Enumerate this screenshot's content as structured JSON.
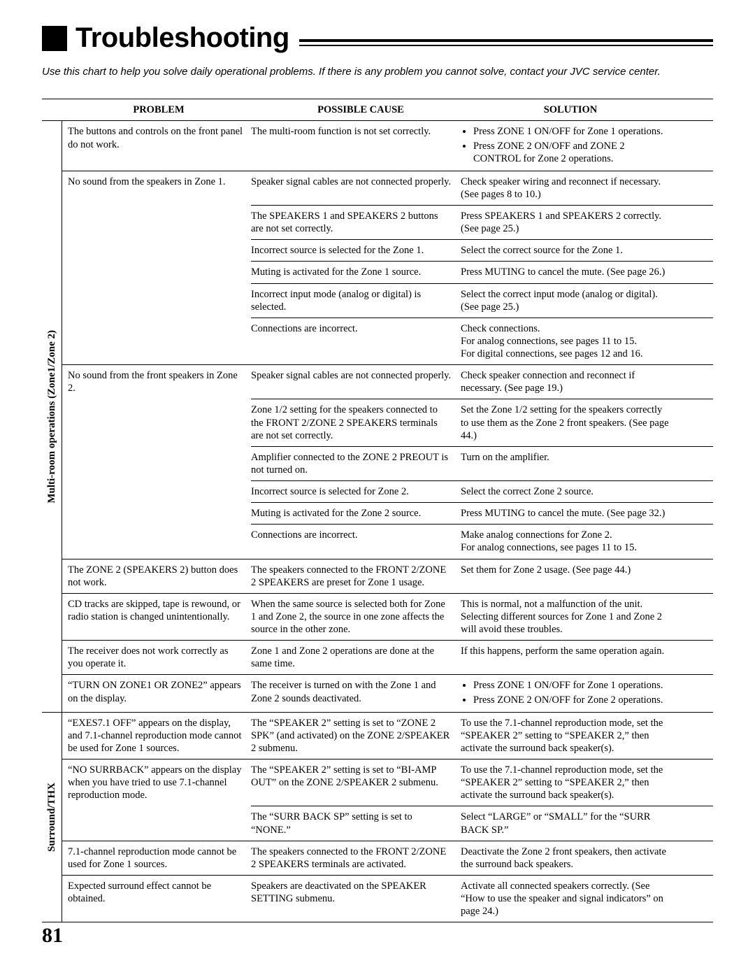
{
  "pageTitle": "Troubleshooting",
  "intro": "Use this chart to help you solve daily operational problems. If there is any problem you cannot solve, contact your JVC service center.",
  "headers": {
    "problem": "PROBLEM",
    "cause": "POSSIBLE CAUSE",
    "solution": "SOLUTION"
  },
  "pageNumber": "81",
  "sections": [
    {
      "label": "Multi-room operations (Zone1/Zone 2)",
      "rows": [
        {
          "problem": "The buttons and controls on the front panel do not work.",
          "causes": [
            {
              "cause": "The multi-room function is not set correctly.",
              "solution": {
                "type": "list",
                "items": [
                  "Press ZONE 1 ON/OFF for Zone 1 operations.",
                  "Press ZONE 2 ON/OFF and ZONE 2 CONTROL for Zone 2 operations."
                ]
              }
            }
          ]
        },
        {
          "problem": "No sound from the speakers in Zone 1.",
          "causes": [
            {
              "cause": "Speaker signal cables are not connected properly.",
              "solution": {
                "type": "text",
                "text": "Check speaker wiring and reconnect if necessary. (See pages 8 to 10.)"
              }
            },
            {
              "cause": "The SPEAKERS 1 and SPEAKERS 2 buttons are not set correctly.",
              "solution": {
                "type": "text",
                "text": "Press SPEAKERS 1 and SPEAKERS 2 correctly. (See page 25.)"
              }
            },
            {
              "cause": "Incorrect source is selected for the Zone 1.",
              "solution": {
                "type": "text",
                "text": "Select the correct source for the Zone 1."
              }
            },
            {
              "cause": "Muting is activated for the Zone 1 source.",
              "solution": {
                "type": "text",
                "text": "Press MUTING to cancel the mute. (See page 26.)"
              }
            },
            {
              "cause": "Incorrect input mode (analog or digital) is selected.",
              "solution": {
                "type": "text",
                "text": "Select the correct input mode (analog or digital). (See page 25.)"
              }
            },
            {
              "cause": "Connections are incorrect.",
              "solution": {
                "type": "text",
                "text": "Check connections.\nFor analog connections, see pages 11 to 15.\nFor digital connections, see pages 12 and 16."
              }
            }
          ]
        },
        {
          "problem": "No sound from the front speakers in Zone 2.",
          "causes": [
            {
              "cause": "Speaker signal cables are not connected properly.",
              "solution": {
                "type": "text",
                "text": "Check speaker connection and reconnect if necessary. (See page 19.)"
              }
            },
            {
              "cause": "Zone 1/2 setting for the speakers connected to the FRONT 2/ZONE 2 SPEAKERS terminals are not set correctly.",
              "solution": {
                "type": "text",
                "text": "Set the Zone 1/2 setting for the speakers correctly to use them as the Zone 2 front speakers. (See page 44.)"
              }
            },
            {
              "cause": "Amplifier connected to the ZONE 2 PREOUT is not turned on.",
              "solution": {
                "type": "text",
                "text": "Turn on the amplifier."
              }
            },
            {
              "cause": "Incorrect source is selected for Zone 2.",
              "solution": {
                "type": "text",
                "text": "Select the correct Zone 2 source."
              }
            },
            {
              "cause": "Muting is activated for the Zone 2 source.",
              "solution": {
                "type": "text",
                "text": "Press MUTING to cancel the mute. (See page 32.)"
              }
            },
            {
              "cause": "Connections are incorrect.",
              "solution": {
                "type": "text",
                "text": "Make analog connections for Zone 2.\nFor analog connections, see pages 11 to 15."
              }
            }
          ]
        },
        {
          "problem": "The ZONE 2 (SPEAKERS 2) button does not work.",
          "causes": [
            {
              "cause": "The speakers connected to the FRONT 2/ZONE 2 SPEAKERS are preset for Zone 1 usage.",
              "solution": {
                "type": "text",
                "text": "Set them for Zone 2 usage. (See page 44.)"
              }
            }
          ]
        },
        {
          "problem": "CD tracks are skipped, tape is rewound, or radio station is changed unintentionally.",
          "causes": [
            {
              "cause": "When the same source is selected both for Zone 1 and Zone 2, the source in one zone affects the source in the other zone.",
              "solution": {
                "type": "text",
                "text": "This is normal, not a malfunction of the unit. Selecting different sources for Zone 1 and Zone 2 will avoid these troubles."
              }
            }
          ]
        },
        {
          "problem": "The receiver does not work correctly as you operate it.",
          "causes": [
            {
              "cause": "Zone 1 and Zone 2 operations are done at the same time.",
              "solution": {
                "type": "text",
                "text": "If this happens, perform the same operation again."
              }
            }
          ]
        },
        {
          "problem": "“TURN ON ZONE1 OR ZONE2” appears on the display.",
          "causes": [
            {
              "cause": "The receiver is turned on with the Zone 1 and Zone 2 sounds deactivated.",
              "solution": {
                "type": "list",
                "items": [
                  "Press ZONE 1 ON/OFF for Zone 1 operations.",
                  "Press ZONE 2 ON/OFF for Zone 2 operations."
                ]
              }
            }
          ]
        }
      ]
    },
    {
      "label": "Surround/THX",
      "rows": [
        {
          "problem": "“EXES7.1 OFF” appears on the display, and 7.1-channel reproduction mode cannot be used for Zone 1 sources.",
          "causes": [
            {
              "cause": "The “SPEAKER 2” setting is set to “ZONE 2 SPK” (and activated) on the ZONE 2/SPEAKER 2 submenu.",
              "solution": {
                "type": "text",
                "text": "To use the 7.1-channel reproduction mode, set the “SPEAKER 2” setting to “SPEAKER 2,” then activate the surround back speaker(s)."
              }
            }
          ]
        },
        {
          "problem": "“NO SURRBACK” appears on the display when you have tried to use 7.1-channel reproduction mode.",
          "causes": [
            {
              "cause": "The “SPEAKER 2” setting is set to “BI-AMP OUT” on the ZONE 2/SPEAKER 2 submenu.",
              "solution": {
                "type": "text",
                "text": "To use the 7.1-channel reproduction mode, set the “SPEAKER 2” setting to “SPEAKER 2,” then activate the surround back speaker(s)."
              }
            },
            {
              "cause": "The “SURR BACK SP” setting is set to “NONE.”",
              "solution": {
                "type": "text",
                "text": "Select “LARGE” or “SMALL” for the “SURR BACK SP.”"
              }
            }
          ]
        },
        {
          "problem": "7.1-channel reproduction mode cannot be used for Zone 1 sources.",
          "causes": [
            {
              "cause": "The speakers connected to the FRONT 2/ZONE 2 SPEAKERS terminals are activated.",
              "solution": {
                "type": "text",
                "text": "Deactivate the Zone 2 front speakers, then activate the surround back speakers."
              }
            }
          ]
        },
        {
          "problem": "Expected surround effect cannot be obtained.",
          "causes": [
            {
              "cause": "Speakers are deactivated on the SPEAKER SETTING submenu.",
              "solution": {
                "type": "text",
                "text": "Activate all connected speakers correctly. (See “How to use the speaker and signal indicators” on page 24.)"
              }
            }
          ]
        }
      ]
    }
  ]
}
